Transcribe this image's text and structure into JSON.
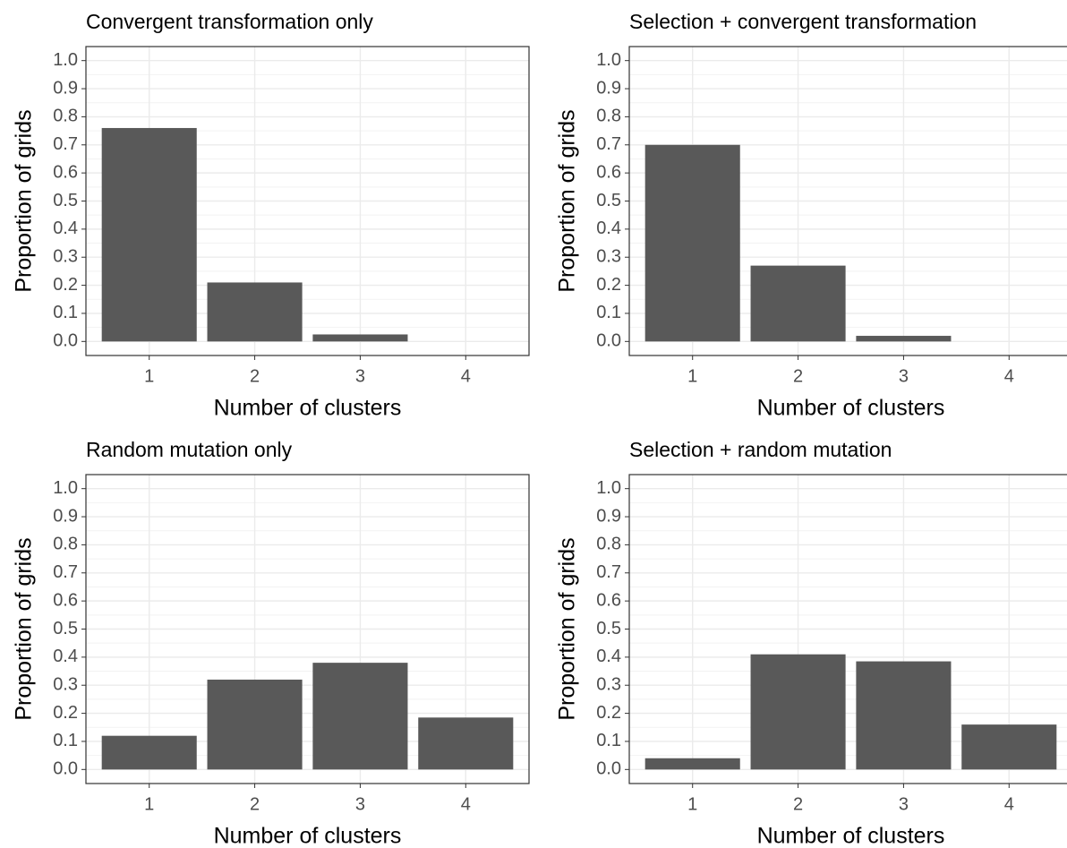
{
  "chart_data": [
    {
      "type": "bar",
      "title": "Convergent transformation only",
      "x_label": "Number of clusters",
      "y_label": "Proportion of grids",
      "categories": [
        "1",
        "2",
        "3",
        "4"
      ],
      "values": [
        0.76,
        0.21,
        0.025,
        0
      ],
      "color": "#595959",
      "ylim": [
        -0.05,
        1.05
      ],
      "yticks": [
        {
          "value": 0,
          "label": "0.0"
        },
        0.1,
        0.2,
        0.3,
        0.4,
        0.5,
        0.6,
        0.7,
        0.8,
        0.9,
        {
          "value": 1,
          "label": "1.0"
        }
      ],
      "grid": true
    },
    {
      "type": "bar",
      "title": "Selection + convergent transformation",
      "x_label": "Number of clusters",
      "y_label": "Proportion of grids",
      "categories": [
        "1",
        "2",
        "3",
        "4"
      ],
      "values": [
        0.7,
        0.27,
        0.02,
        0
      ],
      "color": "#595959",
      "ylim": [
        -0.05,
        1.05
      ],
      "yticks": [
        {
          "value": 0,
          "label": "0.0"
        },
        0.1,
        0.2,
        0.3,
        0.4,
        0.5,
        0.6,
        0.7,
        0.8,
        0.9,
        {
          "value": 1,
          "label": "1.0"
        }
      ],
      "grid": true
    },
    {
      "type": "bar",
      "title": "Random mutation only",
      "x_label": "Number of clusters",
      "y_label": "Proportion of grids",
      "categories": [
        "1",
        "2",
        "3",
        "4"
      ],
      "values": [
        0.12,
        0.32,
        0.38,
        0.185
      ],
      "color": "#595959",
      "ylim": [
        -0.05,
        1.05
      ],
      "yticks": [
        {
          "value": 0,
          "label": "0.0"
        },
        0.1,
        0.2,
        0.3,
        0.4,
        0.5,
        0.6,
        0.7,
        0.8,
        0.9,
        {
          "value": 1,
          "label": "1.0"
        }
      ],
      "grid": true
    },
    {
      "type": "bar",
      "title": "Selection + random mutation",
      "x_label": "Number of clusters",
      "y_label": "Proportion of grids",
      "categories": [
        "1",
        "2",
        "3",
        "4"
      ],
      "values": [
        0.04,
        0.41,
        0.385,
        0.16
      ],
      "color": "#595959",
      "ylim": [
        -0.05,
        1.05
      ],
      "yticks": [
        {
          "value": 0,
          "label": "0.0"
        },
        0.1,
        0.2,
        0.3,
        0.4,
        0.5,
        0.6,
        0.7,
        0.8,
        0.9,
        {
          "value": 1,
          "label": "1.0"
        }
      ],
      "grid": true
    }
  ]
}
